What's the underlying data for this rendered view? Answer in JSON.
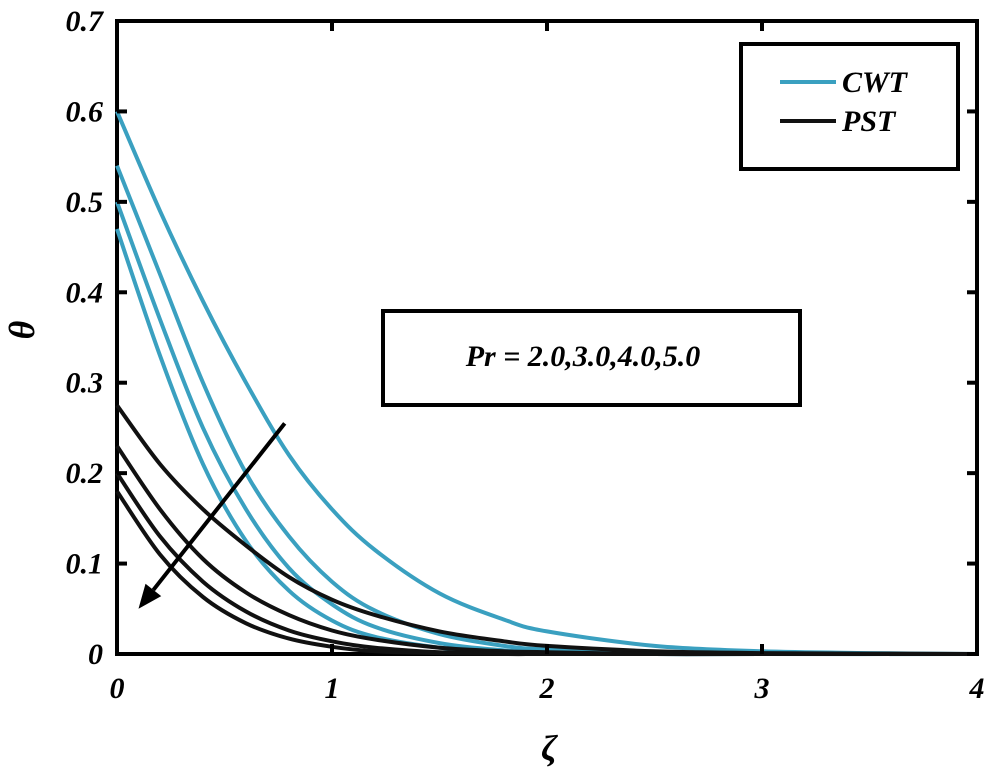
{
  "chart_data": {
    "type": "line",
    "xlabel": "ζ",
    "ylabel": "θ",
    "xlim": [
      0,
      4
    ],
    "ylim": [
      0,
      0.7
    ],
    "xticks": [
      0,
      1,
      2,
      3,
      4
    ],
    "yticks": [
      0,
      0.1,
      0.2,
      0.3,
      0.4,
      0.5,
      0.6,
      0.7
    ],
    "xtick_labels": [
      "0",
      "1",
      "2",
      "3",
      "4"
    ],
    "ytick_labels": [
      "0",
      "0.1",
      "0.2",
      "0.3",
      "0.4",
      "0.5",
      "0.6",
      "0.7"
    ],
    "grid": false,
    "legend": {
      "placement": "top-right",
      "entries": [
        {
          "label": "CWT",
          "color": "#3aa0c0"
        },
        {
          "label": "PST",
          "color": "#111111"
        }
      ]
    },
    "annotation": {
      "text": "Pr = 2.0,3.0,4.0,5.0",
      "arrow_from": [
        0.78,
        0.255
      ],
      "arrow_to": [
        0.1,
        0.05
      ]
    },
    "series": [
      {
        "group": "CWT",
        "color": "#3aa0c0",
        "x": [
          0,
          0.2,
          0.4,
          0.6,
          0.8,
          1.0,
          1.2,
          1.5,
          1.8,
          2.0,
          2.5,
          3.0,
          3.5,
          4.0
        ],
        "y": [
          0.6,
          0.49,
          0.39,
          0.3,
          0.22,
          0.16,
          0.115,
          0.067,
          0.038,
          0.025,
          0.009,
          0.003,
          0.001,
          0
        ]
      },
      {
        "group": "CWT",
        "color": "#3aa0c0",
        "x": [
          0,
          0.2,
          0.4,
          0.6,
          0.8,
          1.0,
          1.2,
          1.5,
          1.8,
          2.0,
          2.5,
          3.0,
          4.0
        ],
        "y": [
          0.54,
          0.42,
          0.3,
          0.2,
          0.13,
          0.08,
          0.048,
          0.022,
          0.009,
          0.005,
          0.001,
          0,
          0
        ]
      },
      {
        "group": "CWT",
        "color": "#3aa0c0",
        "x": [
          0,
          0.2,
          0.4,
          0.6,
          0.8,
          1.0,
          1.2,
          1.5,
          1.8,
          2.0,
          2.5,
          3.0,
          4.0
        ],
        "y": [
          0.5,
          0.37,
          0.25,
          0.16,
          0.095,
          0.055,
          0.03,
          0.012,
          0.004,
          0.002,
          0,
          0,
          0
        ]
      },
      {
        "group": "CWT",
        "color": "#3aa0c0",
        "x": [
          0,
          0.2,
          0.4,
          0.6,
          0.8,
          1.0,
          1.2,
          1.5,
          1.8,
          2.0,
          2.5,
          3.0,
          4.0
        ],
        "y": [
          0.47,
          0.33,
          0.21,
          0.125,
          0.07,
          0.037,
          0.019,
          0.007,
          0.002,
          0.001,
          0,
          0,
          0
        ]
      },
      {
        "group": "PST",
        "color": "#111111",
        "x": [
          0,
          0.2,
          0.4,
          0.6,
          0.8,
          1.0,
          1.2,
          1.5,
          1.8,
          2.0,
          2.5,
          3.0,
          4.0
        ],
        "y": [
          0.275,
          0.21,
          0.16,
          0.12,
          0.085,
          0.06,
          0.043,
          0.025,
          0.014,
          0.009,
          0.003,
          0.001,
          0
        ]
      },
      {
        "group": "PST",
        "color": "#111111",
        "x": [
          0,
          0.2,
          0.4,
          0.6,
          0.8,
          1.0,
          1.2,
          1.5,
          1.8,
          2.0,
          2.5,
          3.0,
          4.0
        ],
        "y": [
          0.23,
          0.16,
          0.105,
          0.068,
          0.043,
          0.026,
          0.016,
          0.007,
          0.003,
          0.002,
          0,
          0,
          0
        ]
      },
      {
        "group": "PST",
        "color": "#111111",
        "x": [
          0,
          0.2,
          0.4,
          0.6,
          0.8,
          1.0,
          1.2,
          1.5,
          1.8,
          2.0,
          2.5,
          3.0,
          4.0
        ],
        "y": [
          0.2,
          0.13,
          0.08,
          0.047,
          0.026,
          0.014,
          0.007,
          0.002,
          0.001,
          0,
          0,
          0,
          0
        ]
      },
      {
        "group": "PST",
        "color": "#111111",
        "x": [
          0,
          0.2,
          0.4,
          0.6,
          0.8,
          1.0,
          1.2,
          1.5,
          1.8,
          2.0,
          2.5,
          3.0,
          4.0
        ],
        "y": [
          0.18,
          0.11,
          0.063,
          0.034,
          0.017,
          0.008,
          0.003,
          0.001,
          0,
          0,
          0,
          0,
          0
        ]
      }
    ]
  }
}
